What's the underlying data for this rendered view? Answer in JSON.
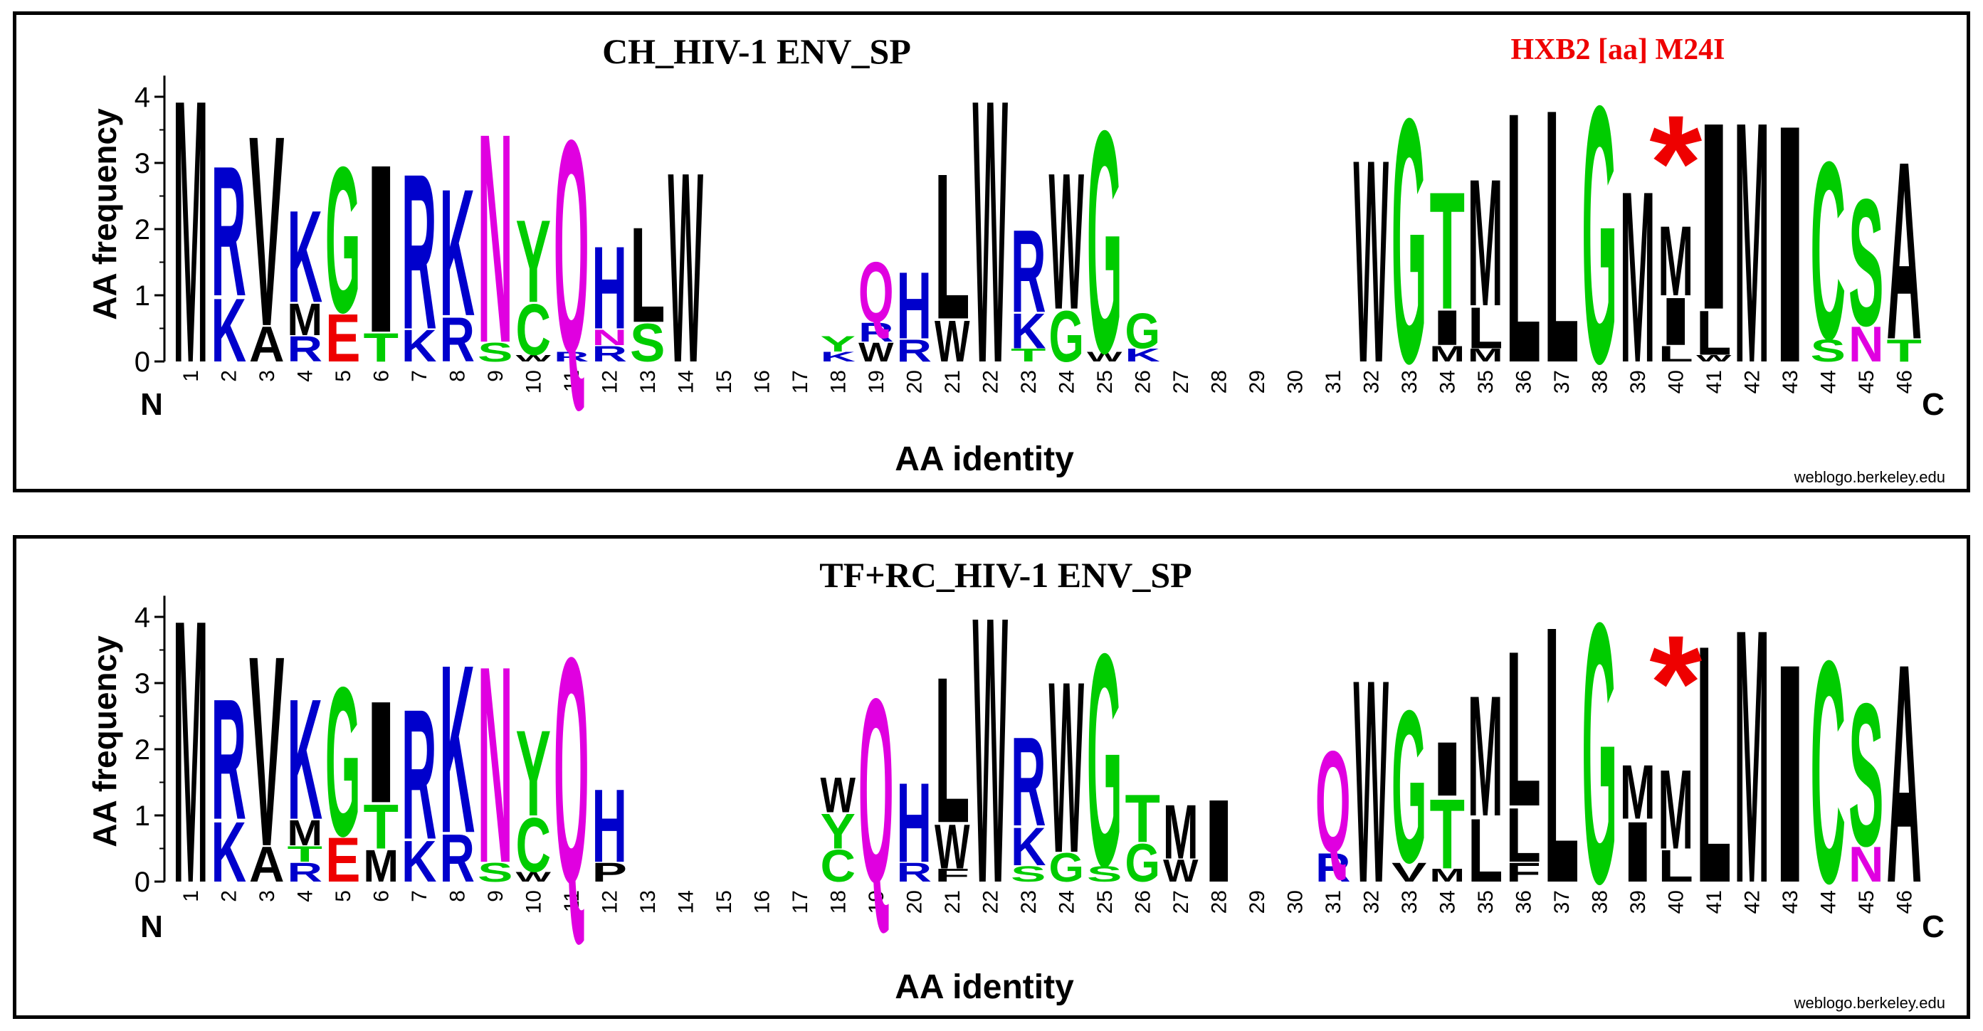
{
  "chart_data": [
    {
      "type": "sequence-logo",
      "title": "CH_HIV-1 ENV_SP",
      "annotation": "HXB2 [aa] M24I",
      "marker": "*",
      "marker_position": 40,
      "ylabel": "AA frequency",
      "xlabel": "AA identity",
      "n_label": "N",
      "c_label": "C",
      "credit": "weblogo.berkeley.edu",
      "ylim": [
        0,
        4.32
      ],
      "yticks": [
        "0",
        "1",
        "2",
        "3",
        "4"
      ],
      "positions": [
        "1",
        "2",
        "3",
        "4",
        "5",
        "6",
        "7",
        "8",
        "9",
        "10",
        "11",
        "12",
        "13",
        "14",
        "15",
        "16",
        "17",
        "18",
        "19",
        "20",
        "21",
        "22",
        "23",
        "24",
        "25",
        "26",
        "27",
        "28",
        "29",
        "30",
        "31",
        "32",
        "33",
        "34",
        "35",
        "36",
        "37",
        "38",
        "39",
        "40",
        "41",
        "42",
        "43",
        "44",
        "45",
        "46"
      ],
      "stacks": [
        [
          [
            "M",
            4.15
          ]
        ],
        [
          [
            "K",
            1.0
          ],
          [
            "R",
            2.05
          ]
        ],
        [
          [
            "A",
            0.55
          ],
          [
            "V",
            3.0
          ]
        ],
        [
          [
            "R",
            0.4
          ],
          [
            "M",
            0.5
          ],
          [
            "K",
            1.45
          ]
        ],
        [
          [
            "E",
            0.75
          ],
          [
            "G",
            2.3
          ]
        ],
        [
          [
            "T",
            0.45
          ],
          [
            "I",
            2.65
          ]
        ],
        [
          [
            "K",
            0.5
          ],
          [
            "R",
            2.45
          ]
        ],
        [
          [
            "R",
            0.7
          ],
          [
            "K",
            2.0
          ]
        ],
        [
          [
            "S",
            0.3
          ],
          [
            "N",
            3.3
          ]
        ],
        [
          [
            "W",
            0.1
          ],
          [
            "C",
            0.8
          ],
          [
            "Y",
            1.3
          ]
        ],
        [
          [
            "R",
            0.15
          ],
          [
            "Q",
            3.35
          ]
        ],
        [
          [
            "R",
            0.25
          ],
          [
            "N",
            0.25
          ],
          [
            "H",
            1.3
          ]
        ],
        [
          [
            "S",
            0.6
          ],
          [
            "L",
            1.5
          ]
        ],
        [
          [
            "W",
            3.0
          ]
        ],
        [],
        [],
        [],
        [
          [
            "K",
            0.15
          ],
          [
            "Y",
            0.25
          ]
        ],
        [
          [
            "W",
            0.3
          ],
          [
            "R",
            0.3
          ],
          [
            "Q",
            0.95
          ]
        ],
        [
          [
            "R",
            0.35
          ],
          [
            "H",
            1.05
          ]
        ],
        [
          [
            "W",
            0.65
          ],
          [
            "L",
            2.3
          ]
        ],
        [
          [
            "W",
            4.15
          ]
        ],
        [
          [
            "T",
            0.2
          ],
          [
            "K",
            0.55
          ],
          [
            "R",
            1.3
          ]
        ],
        [
          [
            "G",
            0.8
          ],
          [
            "W",
            2.15
          ]
        ],
        [
          [
            "W",
            0.15
          ],
          [
            "G",
            3.5
          ]
        ],
        [
          [
            "K",
            0.2
          ],
          [
            "G",
            0.55
          ]
        ],
        [],
        [],
        [],
        [],
        [],
        [
          [
            "W",
            3.2
          ]
        ],
        [
          [
            "G",
            3.85
          ]
        ],
        [
          [
            "M",
            0.25
          ],
          [
            "I",
            0.55
          ],
          [
            "T",
            1.85
          ]
        ],
        [
          [
            "M",
            0.2
          ],
          [
            "L",
            0.65
          ],
          [
            "M",
            2.0
          ]
        ],
        [
          [
            "L",
            3.95
          ]
        ],
        [
          [
            "L",
            4.0
          ]
        ],
        [
          [
            "G",
            4.05
          ]
        ],
        [
          [
            "M",
            2.7
          ]
        ],
        [
          [
            "L",
            0.25
          ],
          [
            "I",
            0.75
          ],
          [
            "M",
            1.1
          ]
        ],
        [
          [
            "W",
            0.1
          ],
          [
            "L",
            0.7
          ],
          [
            "I",
            2.95
          ]
        ],
        [
          [
            "M",
            3.8
          ]
        ],
        [
          [
            "I",
            3.75
          ]
        ],
        [
          [
            "S",
            0.35
          ],
          [
            "C",
            2.8
          ]
        ],
        [
          [
            "N",
            0.55
          ],
          [
            "S",
            2.0
          ]
        ],
        [
          [
            "T",
            0.35
          ],
          [
            "A",
            2.8
          ]
        ]
      ]
    },
    {
      "type": "sequence-logo",
      "title": "TF+RC_HIV-1 ENV_SP",
      "marker": "*",
      "marker_position": 40,
      "ylabel": "AA frequency",
      "xlabel": "AA identity",
      "n_label": "N",
      "c_label": "C",
      "credit": "weblogo.berkeley.edu",
      "ylim": [
        0,
        4.32
      ],
      "yticks": [
        "0",
        "1",
        "2",
        "3",
        "4"
      ],
      "positions": [
        "1",
        "2",
        "3",
        "4",
        "5",
        "6",
        "7",
        "8",
        "9",
        "10",
        "11",
        "12",
        "13",
        "14",
        "15",
        "16",
        "17",
        "18",
        "19",
        "20",
        "21",
        "22",
        "23",
        "24",
        "25",
        "26",
        "27",
        "28",
        "29",
        "30",
        "31",
        "32",
        "33",
        "34",
        "35",
        "36",
        "37",
        "38",
        "39",
        "40",
        "41",
        "42",
        "43",
        "44",
        "45",
        "46"
      ],
      "stacks": [
        [
          [
            "M",
            4.15
          ]
        ],
        [
          [
            "K",
            0.95
          ],
          [
            "R",
            1.9
          ]
        ],
        [
          [
            "A",
            0.55
          ],
          [
            "V",
            3.0
          ]
        ],
        [
          [
            "R",
            0.3
          ],
          [
            "T",
            0.25
          ],
          [
            "M",
            0.4
          ],
          [
            "K",
            1.9
          ]
        ],
        [
          [
            "E",
            0.7
          ],
          [
            "G",
            2.35
          ]
        ],
        [
          [
            "M",
            0.5
          ],
          [
            "T",
            0.7
          ],
          [
            "I",
            1.6
          ]
        ],
        [
          [
            "K",
            0.65
          ],
          [
            "R",
            2.05
          ]
        ],
        [
          [
            "R",
            0.75
          ],
          [
            "K",
            2.65
          ]
        ],
        [
          [
            "S",
            0.3
          ],
          [
            "N",
            3.1
          ]
        ],
        [
          [
            "W",
            0.15
          ],
          [
            "C",
            0.85
          ],
          [
            "Y",
            1.35
          ]
        ],
        [
          [
            "Q",
            3.55
          ]
        ],
        [
          [
            "P",
            0.3
          ],
          [
            "H",
            1.15
          ]
        ],
        [],
        [],
        [],
        [],
        [],
        [
          [
            "C",
            0.5
          ],
          [
            "Y",
            0.55
          ],
          [
            "W",
            0.55
          ]
        ],
        [
          [
            "Q",
            2.9
          ]
        ],
        [
          [
            "R",
            0.3
          ],
          [
            "H",
            1.25
          ]
        ],
        [
          [
            "F",
            0.2
          ],
          [
            "W",
            0.7
          ],
          [
            "L",
            2.3
          ]
        ],
        [
          [
            "W",
            4.2
          ]
        ],
        [
          [
            "S",
            0.25
          ],
          [
            "K",
            0.6
          ],
          [
            "R",
            1.4
          ]
        ],
        [
          [
            "G",
            0.45
          ],
          [
            "W",
            2.7
          ]
        ],
        [
          [
            "S",
            0.25
          ],
          [
            "G",
            3.35
          ]
        ],
        [
          [
            "G",
            0.6
          ],
          [
            "T",
            0.75
          ]
        ],
        [
          [
            "W",
            0.35
          ],
          [
            "M",
            0.85
          ]
        ],
        [
          [
            "I",
            1.3
          ]
        ],
        [],
        [],
        [
          [
            "R",
            0.45
          ],
          [
            "Q",
            1.6
          ]
        ],
        [
          [
            "W",
            3.2
          ]
        ],
        [
          [
            "V",
            0.3
          ],
          [
            "G",
            2.4
          ]
        ],
        [
          [
            "M",
            0.2
          ],
          [
            "T",
            1.1
          ],
          [
            "I",
            0.85
          ]
        ],
        [
          [
            "L",
            1.0
          ],
          [
            "M",
            1.9
          ]
        ],
        [
          [
            "F",
            0.3
          ],
          [
            "L",
            0.85
          ],
          [
            "L",
            2.45
          ]
        ],
        [
          [
            "L",
            4.05
          ]
        ],
        [
          [
            "G",
            4.1
          ]
        ],
        [
          [
            "I",
            0.95
          ],
          [
            "M",
            0.85
          ]
        ],
        [
          [
            "L",
            0.5
          ],
          [
            "M",
            1.25
          ]
        ],
        [
          [
            "L",
            3.75
          ]
        ],
        [
          [
            "M",
            4.0
          ]
        ],
        [
          [
            "I",
            3.45
          ]
        ],
        [
          [
            "C",
            3.5
          ]
        ],
        [
          [
            "N",
            0.55
          ],
          [
            "S",
            2.25
          ]
        ],
        [
          [
            "A",
            3.45
          ]
        ]
      ]
    }
  ],
  "colors": {
    "hydrophobic": "#000000",
    "polar": "#00cc00",
    "basic": "#0000cc",
    "acidic": "#ee0000",
    "amide": "#e000e0",
    "annotation": "#ee0000"
  }
}
